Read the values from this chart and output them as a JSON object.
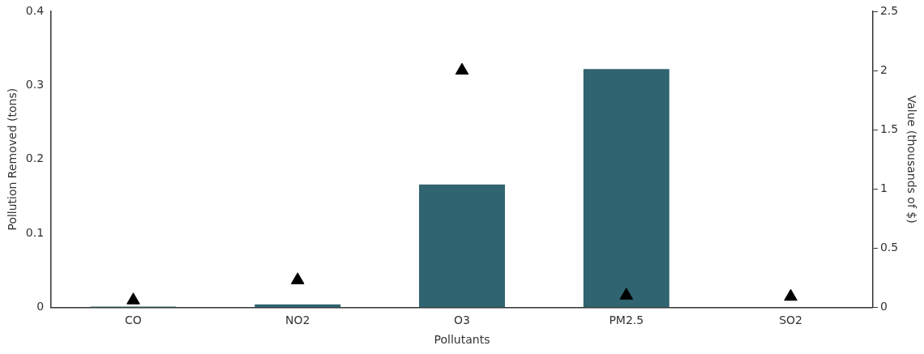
{
  "chart_data": {
    "type": "bar",
    "xlabel": "Pollutants",
    "ylabel": "Pollution Removed (tons)",
    "y2label": "Value (thousands of $)",
    "categories": [
      "CO",
      "NO2",
      "O3",
      "PM2.5",
      "SO2"
    ],
    "series": [
      {
        "type": "bar",
        "color": "#2f6470",
        "values": [
          0.001,
          0.004,
          0.166,
          0.322,
          0
        ]
      },
      {
        "type": "scatter",
        "axis": "y2",
        "color": "#000000",
        "marker": "triangle",
        "values": [
          0.06,
          0.23,
          2.0,
          0.1,
          0.09
        ]
      }
    ],
    "ylim": [
      0,
      0.4
    ],
    "yticks": [
      0,
      0.1,
      0.2,
      0.3,
      0.4
    ],
    "y2lim": [
      0,
      2.5
    ],
    "y2ticks": [
      0,
      0.5,
      1,
      1.5,
      2,
      2.5
    ],
    "grid": false,
    "legend": false
  }
}
